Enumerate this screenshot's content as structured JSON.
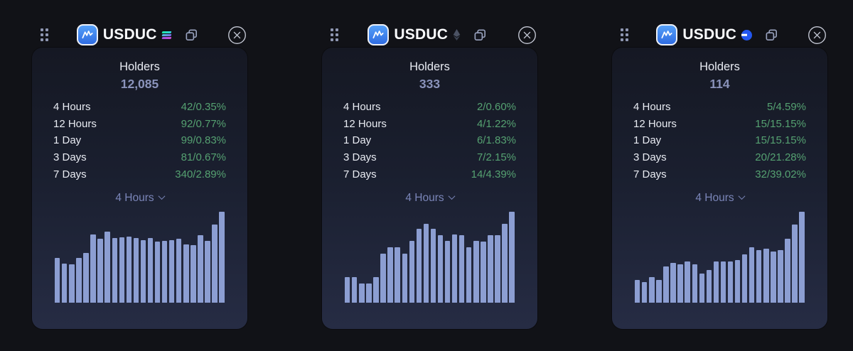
{
  "colors": {
    "page_bg": "#111217",
    "card_gradient_top": "#151823",
    "card_gradient_bottom": "#262c44",
    "accent_green": "#55a171",
    "bar_fill": "#8c9ed2",
    "dropdown_text": "#7a85b8",
    "holders_value_text": "#8a93bb",
    "token_icon_blue": "#2f6ce2"
  },
  "cards": [
    {
      "token_name": "USDUC",
      "chain": "solana",
      "chain_icon": "solana-chain-icon",
      "holders_label": "Holders",
      "holders_value": "12,085",
      "stats": [
        {
          "label": "4 Hours",
          "value": "42/0.35%"
        },
        {
          "label": "12 Hours",
          "value": "92/0.77%"
        },
        {
          "label": "1 Day",
          "value": "99/0.83%"
        },
        {
          "label": "3 Days",
          "value": "81/0.67%"
        },
        {
          "label": "7 Days",
          "value": "340/2.89%"
        }
      ],
      "dropdown_label": "4 Hours"
    },
    {
      "token_name": "USDUC",
      "chain": "ethereum",
      "chain_icon": "ethereum-chain-icon",
      "holders_label": "Holders",
      "holders_value": "333",
      "stats": [
        {
          "label": "4 Hours",
          "value": "2/0.60%"
        },
        {
          "label": "12 Hours",
          "value": "4/1.22%"
        },
        {
          "label": "1 Day",
          "value": "6/1.83%"
        },
        {
          "label": "3 Days",
          "value": "7/2.15%"
        },
        {
          "label": "7 Days",
          "value": "14/4.39%"
        }
      ],
      "dropdown_label": "4 Hours"
    },
    {
      "token_name": "USDUC",
      "chain": "base",
      "chain_icon": "base-chain-icon",
      "holders_label": "Holders",
      "holders_value": "114",
      "stats": [
        {
          "label": "4 Hours",
          "value": "5/4.59%"
        },
        {
          "label": "12 Hours",
          "value": "15/15.15%"
        },
        {
          "label": "1 Day",
          "value": "15/15.15%"
        },
        {
          "label": "3 Days",
          "value": "20/21.28%"
        },
        {
          "label": "7 Days",
          "value": "32/39.02%"
        }
      ],
      "dropdown_label": "4 Hours"
    }
  ],
  "chart_data": [
    {
      "type": "bar",
      "title": "",
      "xlabel": "",
      "ylabel": "",
      "note": "unlabeled holders trend sparkline; values are relative bar heights in % of tallest bar",
      "values": [
        49,
        43,
        42,
        49,
        55,
        75,
        70,
        78,
        71,
        72,
        73,
        71,
        69,
        71,
        67,
        68,
        69,
        70,
        64,
        63,
        74,
        68,
        86,
        100
      ]
    },
    {
      "type": "bar",
      "title": "",
      "xlabel": "",
      "ylabel": "",
      "note": "unlabeled holders trend sparkline; values are relative bar heights in % of tallest bar",
      "values": [
        28,
        28,
        21,
        21,
        28,
        54,
        61,
        61,
        54,
        68,
        81,
        87,
        81,
        74,
        68,
        75,
        74,
        61,
        68,
        67,
        74,
        74,
        87,
        100
      ]
    },
    {
      "type": "bar",
      "title": "",
      "xlabel": "",
      "ylabel": "",
      "note": "unlabeled holders trend sparkline; values are relative bar heights in % of tallest bar",
      "values": [
        25,
        23,
        28,
        25,
        40,
        44,
        42,
        45,
        42,
        32,
        36,
        45,
        45,
        45,
        47,
        53,
        61,
        58,
        59,
        56,
        58,
        70,
        86,
        100
      ]
    }
  ]
}
